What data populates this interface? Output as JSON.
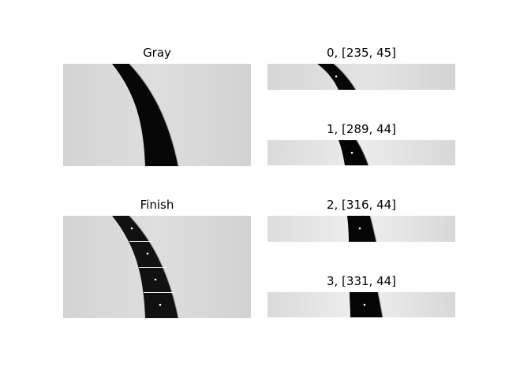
{
  "figure": {
    "panels": [
      {
        "id": "gray",
        "title": "Gray"
      },
      {
        "id": "finish",
        "title": "Finish"
      },
      {
        "id": "strip0",
        "title": "0, [235, 45]"
      },
      {
        "id": "strip1",
        "title": "1, [289, 44]"
      },
      {
        "id": "strip2",
        "title": "2, [316, 44]"
      },
      {
        "id": "strip3",
        "title": "3, [331, 44]"
      }
    ]
  }
}
